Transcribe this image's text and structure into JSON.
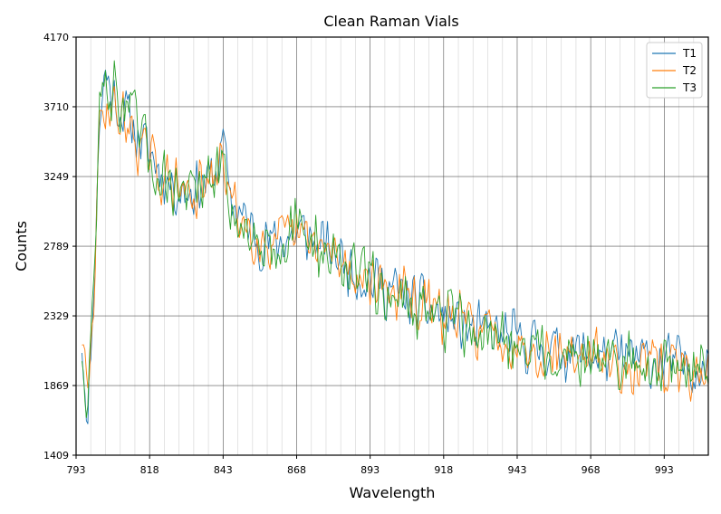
{
  "chart_data": {
    "type": "line",
    "title": "Clean Raman Vials",
    "xlabel": "Wavelength",
    "ylabel": "Counts",
    "xlim": [
      793,
      1008
    ],
    "ylim": [
      1409,
      4170
    ],
    "xticks": [
      793,
      818,
      843,
      868,
      893,
      918,
      943,
      968,
      993
    ],
    "yticks": [
      1409,
      1869,
      2329,
      2789,
      3249,
      3710,
      4170
    ],
    "xtick_labels": [
      "793",
      "818",
      "843",
      "868",
      "893",
      "918",
      "943",
      "968",
      "993"
    ],
    "ytick_labels": [
      "1409",
      "1869",
      "2329",
      "2789",
      "3249",
      "3710",
      "4170"
    ],
    "grid": true,
    "legend_position": "top-right",
    "series": [
      {
        "name": "T1",
        "color": "#1f77b4",
        "anchors_x": [
          795,
          797,
          799,
          801,
          803,
          805,
          808,
          812,
          816,
          820,
          825,
          830,
          835,
          840,
          843,
          846,
          850,
          855,
          860,
          865,
          870,
          875,
          880,
          885,
          890,
          895,
          900,
          905,
          910,
          915,
          920,
          925,
          930,
          935,
          940,
          945,
          950,
          955,
          960,
          965,
          970,
          975,
          980,
          985,
          990,
          995,
          1000,
          1005,
          1008
        ],
        "anchors_y": [
          2150,
          1650,
          2500,
          3650,
          3950,
          3800,
          3700,
          3600,
          3450,
          3350,
          3200,
          3150,
          3200,
          3250,
          3450,
          3100,
          2950,
          2850,
          2800,
          2850,
          2880,
          2800,
          2750,
          2680,
          2600,
          2550,
          2500,
          2450,
          2400,
          2350,
          2300,
          2250,
          2220,
          2200,
          2180,
          2150,
          2120,
          2100,
          2100,
          2080,
          2060,
          2050,
          2050,
          2040,
          2030,
          2020,
          2010,
          2000,
          2000
        ],
        "noise": 230,
        "seed": 11
      },
      {
        "name": "T2",
        "color": "#ff7f0e",
        "anchors_x": [
          795,
          797,
          799,
          801,
          803,
          805,
          808,
          812,
          816,
          820,
          825,
          830,
          835,
          840,
          843,
          846,
          850,
          855,
          860,
          865,
          870,
          875,
          880,
          885,
          890,
          895,
          900,
          905,
          910,
          915,
          920,
          925,
          930,
          935,
          940,
          945,
          950,
          955,
          960,
          965,
          970,
          975,
          980,
          985,
          990,
          995,
          1000,
          1005,
          1008
        ],
        "anchors_y": [
          2200,
          1750,
          2450,
          3550,
          3750,
          3700,
          3650,
          3550,
          3400,
          3300,
          3200,
          3150,
          3150,
          3200,
          3400,
          3050,
          2950,
          2850,
          2800,
          2820,
          2850,
          2780,
          2720,
          2650,
          2600,
          2550,
          2500,
          2450,
          2400,
          2350,
          2320,
          2280,
          2250,
          2200,
          2180,
          2150,
          2120,
          2100,
          2080,
          2060,
          2040,
          2030,
          2020,
          2000,
          1990,
          1980,
          1970,
          1960,
          1960
        ],
        "noise": 230,
        "seed": 29
      },
      {
        "name": "T3",
        "color": "#2ca02c",
        "anchors_x": [
          795,
          797,
          799,
          801,
          803,
          805,
          808,
          812,
          816,
          820,
          825,
          830,
          835,
          840,
          843,
          846,
          850,
          855,
          860,
          865,
          870,
          875,
          880,
          885,
          890,
          895,
          900,
          905,
          910,
          915,
          920,
          925,
          930,
          935,
          940,
          945,
          950,
          955,
          960,
          965,
          970,
          975,
          980,
          985,
          990,
          995,
          1000,
          1005,
          1008
        ],
        "anchors_y": [
          2100,
          1700,
          2550,
          3700,
          3850,
          3800,
          3750,
          3650,
          3450,
          3300,
          3200,
          3150,
          3150,
          3200,
          3350,
          3050,
          2900,
          2850,
          2820,
          2860,
          2880,
          2800,
          2740,
          2660,
          2600,
          2540,
          2480,
          2430,
          2380,
          2340,
          2300,
          2260,
          2220,
          2180,
          2160,
          2140,
          2110,
          2090,
          2080,
          2060,
          2040,
          2030,
          2020,
          2010,
          2000,
          1990,
          1980,
          1970,
          1970
        ],
        "noise": 260,
        "seed": 47
      }
    ]
  }
}
